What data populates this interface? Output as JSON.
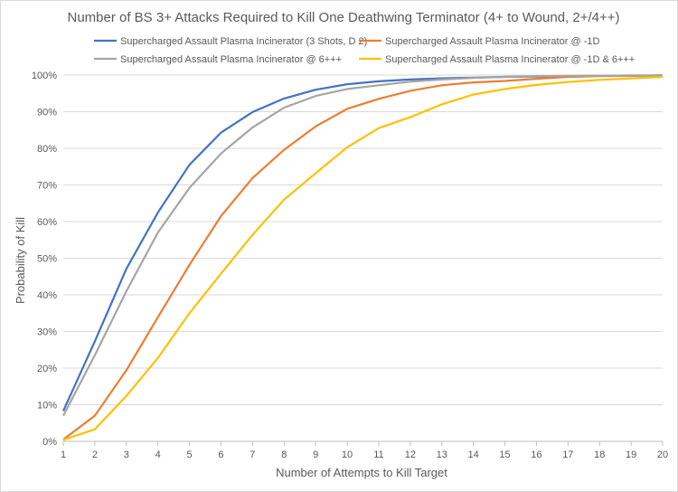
{
  "chart_data": {
    "type": "line",
    "title": "Number of BS 3+ Attacks Required to Kill One Deathwing Terminator (4+ to Wound, 2+/4++)",
    "xlabel": "Number of Attempts to Kill Target",
    "ylabel": "Probability of Kill",
    "x": [
      1,
      2,
      3,
      4,
      5,
      6,
      7,
      8,
      9,
      10,
      11,
      12,
      13,
      14,
      15,
      16,
      17,
      18,
      19,
      20
    ],
    "xlim": [
      1,
      20
    ],
    "ylim": [
      0,
      1
    ],
    "y_ticks": [
      0,
      0.1,
      0.2,
      0.3,
      0.4,
      0.5,
      0.6,
      0.7,
      0.8,
      0.9,
      1.0
    ],
    "y_tick_labels": [
      "0%",
      "10%",
      "20%",
      "30%",
      "40%",
      "50%",
      "60%",
      "70%",
      "80%",
      "90%",
      "100%"
    ],
    "grid": "horizontal",
    "legend_position": "top",
    "series": [
      {
        "name": "Supercharged Assault Plasma Incinerator (3 Shots, D 2)",
        "color": "#4472C4",
        "values": [
          0.083,
          0.273,
          0.471,
          0.625,
          0.755,
          0.843,
          0.899,
          0.936,
          0.96,
          0.975,
          0.983,
          0.988,
          0.991,
          0.993,
          0.995,
          0.996,
          0.997,
          0.998,
          0.998,
          0.999
        ]
      },
      {
        "name": "Supercharged Assault Plasma Incinerator @ -1D",
        "color": "#ED7D31",
        "values": [
          0.005,
          0.07,
          0.194,
          0.339,
          0.482,
          0.615,
          0.719,
          0.796,
          0.86,
          0.908,
          0.935,
          0.957,
          0.972,
          0.98,
          0.984,
          0.99,
          0.995,
          0.997,
          0.998,
          0.999
        ]
      },
      {
        "name": "Supercharged Assault Plasma Incinerator @ 6+++",
        "color": "#A5A5A5",
        "values": [
          0.07,
          0.235,
          0.41,
          0.57,
          0.692,
          0.786,
          0.857,
          0.911,
          0.943,
          0.962,
          0.972,
          0.982,
          0.988,
          0.992,
          0.995,
          0.997,
          0.998,
          0.998,
          0.999,
          0.999
        ]
      },
      {
        "name": "Supercharged Assault Plasma Incinerator @ -1D & 6+++",
        "color": "#FFC000",
        "values": [
          0.004,
          0.033,
          0.124,
          0.228,
          0.35,
          0.458,
          0.564,
          0.66,
          0.732,
          0.803,
          0.855,
          0.885,
          0.92,
          0.947,
          0.962,
          0.973,
          0.981,
          0.987,
          0.991,
          0.995
        ]
      }
    ]
  }
}
